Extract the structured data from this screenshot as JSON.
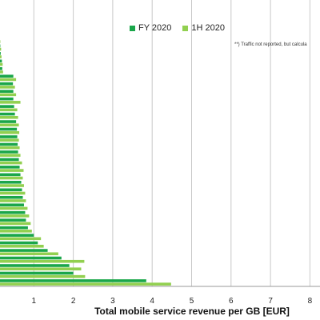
{
  "chart_data": {
    "type": "bar",
    "orientation": "horizontal",
    "xlabel": "Total mobile service revenue per GB [EUR]",
    "xlim": [
      0,
      8
    ],
    "x_ticks": [
      "1",
      "2",
      "3",
      "4",
      "5",
      "6",
      "7",
      "8"
    ],
    "grid": "vertical",
    "legend_position": "top",
    "annotation": "**) Traffic not reported, but calcula",
    "series": [
      {
        "name": "FY 2020",
        "color": "#1aa64a",
        "values": [
          0.12,
          0.13,
          0.15,
          0.16,
          0.19,
          0.2,
          0.48,
          0.47,
          0.48,
          0.48,
          0.5,
          0.52,
          0.55,
          0.57,
          0.58,
          0.59,
          0.6,
          0.62,
          0.64,
          0.66,
          0.68,
          0.7,
          0.72,
          0.75,
          0.78,
          0.8,
          0.85,
          1.0,
          1.1,
          1.35,
          1.7,
          1.9,
          2.0,
          3.85
        ]
      },
      {
        "name": "1H 2020",
        "color": "#92d050",
        "values": [
          0.14,
          0.15,
          0.17,
          0.18,
          0.21,
          0.22,
          0.55,
          0.52,
          0.55,
          0.66,
          0.58,
          0.6,
          0.62,
          0.63,
          0.62,
          0.64,
          0.66,
          0.7,
          0.74,
          0.72,
          0.75,
          0.78,
          0.8,
          0.84,
          0.88,
          0.92,
          0.95,
          1.18,
          1.25,
          1.62,
          2.28,
          2.2,
          2.3,
          4.48
        ]
      }
    ]
  }
}
